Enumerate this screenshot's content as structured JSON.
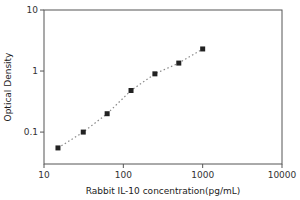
{
  "chart_data": {
    "type": "line",
    "x_label": "Rabbit IL-10 concentration(pg/mL)",
    "y_label": "Optical Density",
    "x": [
      15,
      31.25,
      62.5,
      125,
      250,
      500,
      1000
    ],
    "values": [
      0.055,
      0.1,
      0.2,
      0.48,
      0.9,
      1.35,
      2.3
    ],
    "xlim": [
      10,
      10000
    ],
    "ylim": [
      0.03,
      10
    ],
    "xticks": [
      10,
      100,
      1000,
      10000
    ],
    "yticks": [
      0.1,
      1,
      10
    ],
    "log": true,
    "grid": false,
    "color": "#888888",
    "line_style": "dotted",
    "marker": "square"
  }
}
